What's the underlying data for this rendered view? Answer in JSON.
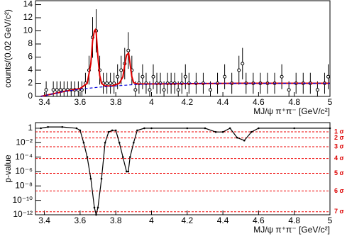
{
  "chart_data": [
    {
      "type": "scatter",
      "ylabel": "counts/(0.02 GeV/c²)",
      "xlabel": "MJ/ψ π⁺π⁻ [GeV/c²]",
      "xlim": [
        3.35,
        5.0
      ],
      "xticks": [
        3.4,
        3.6,
        3.8,
        4,
        4.2,
        4.4,
        4.6,
        4.8,
        5
      ],
      "ylim": [
        0,
        14.6
      ],
      "yticks": [
        0,
        2,
        4,
        6,
        8,
        10,
        12,
        14
      ],
      "series": [
        {
          "kind": "points",
          "color": "#000",
          "x": [
            3.41,
            3.45,
            3.47,
            3.49,
            3.51,
            3.53,
            3.55,
            3.57,
            3.59,
            3.61,
            3.63,
            3.65,
            3.67,
            3.69,
            3.71,
            3.73,
            3.75,
            3.77,
            3.79,
            3.81,
            3.83,
            3.85,
            3.87,
            3.89,
            3.91,
            3.93,
            3.95,
            3.97,
            3.99,
            4.01,
            4.03,
            4.05,
            4.07,
            4.09,
            4.11,
            4.13,
            4.15,
            4.17,
            4.19,
            4.21,
            4.25,
            4.29,
            4.33,
            4.37,
            4.41,
            4.45,
            4.49,
            4.51,
            4.53,
            4.57,
            4.61,
            4.65,
            4.69,
            4.73,
            4.77,
            4.81,
            4.85,
            4.89,
            4.93,
            4.97,
            4.99
          ],
          "values": [
            1,
            1,
            1,
            1,
            1,
            1,
            1,
            1,
            1,
            1,
            2,
            4,
            9,
            10,
            4,
            2,
            2,
            2,
            2,
            3,
            4,
            5,
            7,
            4,
            1,
            2,
            3,
            2,
            1,
            3,
            2,
            2,
            1,
            2,
            2,
            2,
            1,
            2,
            3,
            2,
            2,
            2,
            1,
            2,
            3,
            2,
            4,
            5,
            2,
            2,
            2,
            2,
            2,
            3,
            1,
            2,
            2,
            2,
            1,
            2,
            3
          ],
          "errors": [
            1.3,
            1.3,
            1.3,
            1.3,
            1.3,
            1.3,
            1.3,
            1.3,
            1.3,
            1.3,
            1.6,
            2.2,
            3.1,
            3.3,
            2.2,
            1.6,
            1.6,
            1.6,
            1.6,
            1.9,
            2.2,
            2.4,
            2.8,
            2.2,
            1.3,
            1.6,
            1.9,
            1.6,
            1.3,
            1.9,
            1.6,
            1.6,
            1.3,
            1.6,
            1.6,
            1.6,
            1.3,
            1.6,
            1.9,
            1.6,
            1.6,
            1.6,
            1.3,
            1.6,
            1.9,
            1.6,
            2.2,
            2.4,
            1.6,
            1.6,
            1.6,
            1.6,
            1.6,
            1.9,
            1.3,
            1.6,
            1.6,
            1.6,
            1.3,
            1.6,
            1.9
          ]
        },
        {
          "kind": "line",
          "color": "#dd0000",
          "width": 2,
          "x": [
            3.38,
            3.5,
            3.6,
            3.64,
            3.66,
            3.67,
            3.68,
            3.686,
            3.69,
            3.7,
            3.71,
            3.72,
            3.74,
            3.78,
            3.82,
            3.84,
            3.85,
            3.86,
            3.872,
            3.88,
            3.89,
            3.9,
            3.92,
            4.0,
            4.5,
            5.0
          ],
          "values": [
            0,
            0.7,
            1.2,
            2,
            5,
            8.5,
            10,
            10.2,
            9.8,
            6,
            3.2,
            2,
            1.6,
            1.6,
            2,
            3,
            4.8,
            6.3,
            6.6,
            5,
            3,
            2.1,
            1.9,
            1.9,
            2,
            2
          ]
        },
        {
          "kind": "dashed",
          "color": "#0000dd",
          "width": 1.2,
          "x": [
            3.38,
            3.45,
            3.5,
            3.6,
            3.7,
            3.8,
            3.9,
            4.0,
            4.2,
            4.5,
            5.0
          ],
          "values": [
            0,
            0.4,
            0.7,
            1.1,
            1.4,
            1.6,
            1.8,
            1.9,
            2.0,
            2.0,
            2.0
          ]
        }
      ]
    },
    {
      "type": "line",
      "ylabel": "p-value",
      "xlabel": "MJ/ψ π⁺π⁻ [GeV/c²]",
      "log_y": true,
      "xlim": [
        3.35,
        5.0
      ],
      "xticks": [
        3.4,
        3.6,
        3.8,
        4,
        4.2,
        4.4,
        4.6,
        4.8,
        5
      ],
      "ylim": [
        1e-12,
        6
      ],
      "yticks": [
        1,
        {
          "value": 0.01,
          "label": "10⁻²"
        },
        {
          "value": 0.0001,
          "label": "10⁻⁴"
        },
        {
          "value": 1e-06,
          "label": "10⁻⁶"
        },
        {
          "value": 1e-08,
          "label": "10⁻⁸"
        },
        {
          "value": 1e-10,
          "label": "10⁻¹⁰"
        },
        {
          "value": 1e-12,
          "label": "10⁻¹²"
        }
      ],
      "sigma_lines": [
        {
          "value": 0.317,
          "label": "1 σ"
        },
        {
          "value": 0.0455,
          "label": "2 σ"
        },
        {
          "value": 0.0027,
          "label": "3 σ"
        },
        {
          "value": 6.3e-05,
          "label": "4 σ"
        },
        {
          "value": 5.7e-07,
          "label": "5 σ"
        },
        {
          "value": 2e-09,
          "label": "6 σ"
        },
        {
          "value": 2.6e-12,
          "label": "7 σ"
        }
      ],
      "series": [
        {
          "kind": "line",
          "color": "#000",
          "width": 1.2,
          "x": [
            3.38,
            3.42,
            3.5,
            3.58,
            3.6,
            3.62,
            3.64,
            3.66,
            3.68,
            3.69,
            3.7,
            3.72,
            3.74,
            3.76,
            3.78,
            3.8,
            3.82,
            3.84,
            3.86,
            3.87,
            3.88,
            3.9,
            3.92,
            3.96,
            4.0,
            4.2,
            4.3,
            4.36,
            4.4,
            4.44,
            4.48,
            4.52,
            4.56,
            4.6,
            4.8,
            5.0
          ],
          "values": [
            1,
            1.5,
            1.5,
            1,
            0.5,
            0.01,
            0.0001,
            1e-07,
            1e-11,
            1e-12,
            1e-11,
            1e-07,
            0.01,
            0.3,
            0.5,
            0.5,
            0.01,
            0.0001,
            1e-06,
            1e-06,
            0.0001,
            0.01,
            0.5,
            1,
            1,
            1,
            1,
            0.3,
            0.3,
            1,
            0.05,
            0.02,
            0.3,
            1,
            1,
            1
          ]
        }
      ]
    }
  ]
}
